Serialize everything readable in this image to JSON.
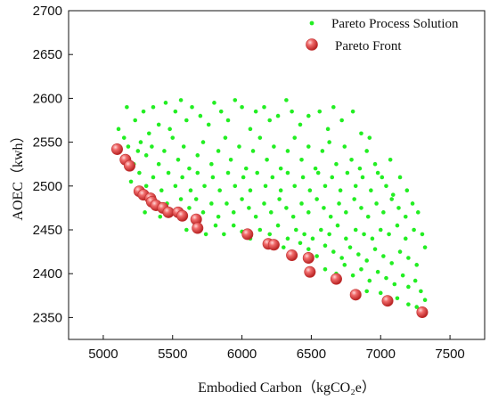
{
  "chart_data": {
    "type": "scatter",
    "xlabel": "Embodied Carbon（kgCO₂e）",
    "ylabel": "AOEC（kwh）",
    "xlim": [
      4750,
      7750
    ],
    "ylim": [
      2325,
      2700
    ],
    "xticks": [
      5000,
      5500,
      6000,
      6500,
      7000,
      7500
    ],
    "yticks": [
      2350,
      2400,
      2450,
      2500,
      2550,
      2600,
      2650,
      2700
    ],
    "legend_position": "top-right",
    "series": [
      {
        "name": "Pareto Process Solution",
        "marker": "small-dot",
        "color": "#22ee22",
        "points": [
          [
            5110,
            2565
          ],
          [
            5150,
            2555
          ],
          [
            5170,
            2590
          ],
          [
            5230,
            2575
          ],
          [
            5250,
            2540
          ],
          [
            5290,
            2585
          ],
          [
            5330,
            2560
          ],
          [
            5360,
            2590
          ],
          [
            5400,
            2570
          ],
          [
            5450,
            2595
          ],
          [
            5480,
            2565
          ],
          [
            5520,
            2585
          ],
          [
            5560,
            2598
          ],
          [
            5600,
            2575
          ],
          [
            5640,
            2590
          ],
          [
            5700,
            2580
          ],
          [
            5760,
            2570
          ],
          [
            5800,
            2595
          ],
          [
            5850,
            2585
          ],
          [
            5900,
            2575
          ],
          [
            5950,
            2598
          ],
          [
            6000,
            2590
          ],
          [
            6060,
            2565
          ],
          [
            6100,
            2585
          ],
          [
            6160,
            2590
          ],
          [
            6200,
            2575
          ],
          [
            6260,
            2580
          ],
          [
            6320,
            2598
          ],
          [
            6360,
            2585
          ],
          [
            6420,
            2570
          ],
          [
            6480,
            2580
          ],
          [
            6560,
            2585
          ],
          [
            6620,
            2565
          ],
          [
            6660,
            2590
          ],
          [
            6720,
            2575
          ],
          [
            6800,
            2585
          ],
          [
            6860,
            2560
          ],
          [
            6920,
            2555
          ],
          [
            5140,
            2530
          ],
          [
            5180,
            2545
          ],
          [
            5220,
            2525
          ],
          [
            5270,
            2550
          ],
          [
            5310,
            2535
          ],
          [
            5350,
            2545
          ],
          [
            5400,
            2525
          ],
          [
            5440,
            2540
          ],
          [
            5500,
            2555
          ],
          [
            5540,
            2530
          ],
          [
            5580,
            2545
          ],
          [
            5620,
            2520
          ],
          [
            5680,
            2535
          ],
          [
            5720,
            2550
          ],
          [
            5780,
            2525
          ],
          [
            5830,
            2540
          ],
          [
            5880,
            2555
          ],
          [
            5920,
            2530
          ],
          [
            5980,
            2545
          ],
          [
            6030,
            2520
          ],
          [
            6080,
            2540
          ],
          [
            6130,
            2555
          ],
          [
            6180,
            2530
          ],
          [
            6230,
            2545
          ],
          [
            6280,
            2520
          ],
          [
            6330,
            2540
          ],
          [
            6380,
            2555
          ],
          [
            6430,
            2530
          ],
          [
            6480,
            2545
          ],
          [
            6530,
            2520
          ],
          [
            6580,
            2540
          ],
          [
            6630,
            2550
          ],
          [
            6680,
            2525
          ],
          [
            6740,
            2545
          ],
          [
            6790,
            2530
          ],
          [
            6850,
            2520
          ],
          [
            6900,
            2540
          ],
          [
            6960,
            2525
          ],
          [
            7010,
            2510
          ],
          [
            7070,
            2530
          ],
          [
            5200,
            2505
          ],
          [
            5260,
            2515
          ],
          [
            5310,
            2500
          ],
          [
            5360,
            2510
          ],
          [
            5420,
            2495
          ],
          [
            5470,
            2515
          ],
          [
            5520,
            2500
          ],
          [
            5570,
            2510
          ],
          [
            5630,
            2495
          ],
          [
            5680,
            2515
          ],
          [
            5730,
            2500
          ],
          [
            5790,
            2510
          ],
          [
            5840,
            2495
          ],
          [
            5900,
            2515
          ],
          [
            5950,
            2500
          ],
          [
            6010,
            2510
          ],
          [
            6060,
            2495
          ],
          [
            6110,
            2515
          ],
          [
            6170,
            2500
          ],
          [
            6220,
            2510
          ],
          [
            6280,
            2495
          ],
          [
            6330,
            2515
          ],
          [
            6380,
            2500
          ],
          [
            6440,
            2510
          ],
          [
            6490,
            2495
          ],
          [
            6550,
            2515
          ],
          [
            6600,
            2500
          ],
          [
            6650,
            2510
          ],
          [
            6710,
            2495
          ],
          [
            6760,
            2515
          ],
          [
            6820,
            2500
          ],
          [
            6870,
            2510
          ],
          [
            6930,
            2495
          ],
          [
            6980,
            2515
          ],
          [
            7040,
            2500
          ],
          [
            7090,
            2490
          ],
          [
            7140,
            2510
          ],
          [
            7190,
            2495
          ],
          [
            5300,
            2470
          ],
          [
            5350,
            2480
          ],
          [
            5410,
            2465
          ],
          [
            5460,
            2480
          ],
          [
            5510,
            2470
          ],
          [
            5560,
            2485
          ],
          [
            5620,
            2475
          ],
          [
            5670,
            2485
          ],
          [
            5720,
            2470
          ],
          [
            5780,
            2480
          ],
          [
            5830,
            2465
          ],
          [
            5890,
            2480
          ],
          [
            5940,
            2470
          ],
          [
            6000,
            2485
          ],
          [
            6050,
            2475
          ],
          [
            6100,
            2465
          ],
          [
            6160,
            2480
          ],
          [
            6210,
            2470
          ],
          [
            6270,
            2485
          ],
          [
            6320,
            2475
          ],
          [
            6370,
            2465
          ],
          [
            6430,
            2480
          ],
          [
            6480,
            2470
          ],
          [
            6540,
            2485
          ],
          [
            6590,
            2475
          ],
          [
            6640,
            2465
          ],
          [
            6700,
            2480
          ],
          [
            6750,
            2470
          ],
          [
            6810,
            2485
          ],
          [
            6860,
            2475
          ],
          [
            6910,
            2465
          ],
          [
            6970,
            2480
          ],
          [
            7020,
            2470
          ],
          [
            7080,
            2485
          ],
          [
            7130,
            2475
          ],
          [
            7180,
            2465
          ],
          [
            7230,
            2480
          ],
          [
            7270,
            2470
          ],
          [
            5600,
            2450
          ],
          [
            5660,
            2455
          ],
          [
            5740,
            2445
          ],
          [
            5810,
            2455
          ],
          [
            5870,
            2445
          ],
          [
            5940,
            2455
          ],
          [
            6000,
            2448
          ],
          [
            6060,
            2440
          ],
          [
            6130,
            2450
          ],
          [
            6200,
            2445
          ],
          [
            6260,
            2455
          ],
          [
            6330,
            2440
          ],
          [
            6390,
            2450
          ],
          [
            6450,
            2445
          ],
          [
            6510,
            2440
          ],
          [
            6570,
            2450
          ],
          [
            6630,
            2445
          ],
          [
            6690,
            2455
          ],
          [
            6750,
            2440
          ],
          [
            6820,
            2450
          ],
          [
            6880,
            2445
          ],
          [
            6940,
            2440
          ],
          [
            7000,
            2450
          ],
          [
            7060,
            2445
          ],
          [
            7120,
            2455
          ],
          [
            7180,
            2440
          ],
          [
            7240,
            2450
          ],
          [
            7300,
            2445
          ],
          [
            6300,
            2430
          ],
          [
            6360,
            2425
          ],
          [
            6420,
            2435
          ],
          [
            6480,
            2428
          ],
          [
            6540,
            2420
          ],
          [
            6600,
            2432
          ],
          [
            6660,
            2425
          ],
          [
            6720,
            2418
          ],
          [
            6780,
            2430
          ],
          [
            6840,
            2422
          ],
          [
            6900,
            2415
          ],
          [
            6960,
            2428
          ],
          [
            7020,
            2420
          ],
          [
            7080,
            2412
          ],
          [
            7140,
            2425
          ],
          [
            7200,
            2418
          ],
          [
            7260,
            2410
          ],
          [
            7320,
            2430
          ],
          [
            6600,
            2405
          ],
          [
            6680,
            2400
          ],
          [
            6740,
            2410
          ],
          [
            6800,
            2398
          ],
          [
            6860,
            2405
          ],
          [
            6920,
            2392
          ],
          [
            6980,
            2402
          ],
          [
            7040,
            2395
          ],
          [
            7100,
            2388
          ],
          [
            7160,
            2398
          ],
          [
            7200,
            2385
          ],
          [
            7250,
            2392
          ],
          [
            7290,
            2380
          ],
          [
            7320,
            2370
          ],
          [
            6900,
            2380
          ],
          [
            7000,
            2378
          ],
          [
            7120,
            2372
          ],
          [
            7200,
            2365
          ],
          [
            7260,
            2362
          ]
        ]
      },
      {
        "name": "Pareto Front",
        "marker": "red-sphere",
        "color": "#e84848",
        "points": [
          [
            5100,
            2542
          ],
          [
            5160,
            2530
          ],
          [
            5190,
            2523
          ],
          [
            5260,
            2494
          ],
          [
            5290,
            2490
          ],
          [
            5340,
            2486
          ],
          [
            5350,
            2482
          ],
          [
            5380,
            2478
          ],
          [
            5430,
            2475
          ],
          [
            5470,
            2470
          ],
          [
            5540,
            2470
          ],
          [
            5570,
            2466
          ],
          [
            5670,
            2462
          ],
          [
            5680,
            2452
          ],
          [
            6040,
            2445
          ],
          [
            6190,
            2434
          ],
          [
            6230,
            2433
          ],
          [
            6360,
            2421
          ],
          [
            6480,
            2418
          ],
          [
            6490,
            2402
          ],
          [
            6680,
            2394
          ],
          [
            6820,
            2376
          ],
          [
            7050,
            2369
          ],
          [
            7300,
            2356
          ]
        ]
      }
    ]
  }
}
